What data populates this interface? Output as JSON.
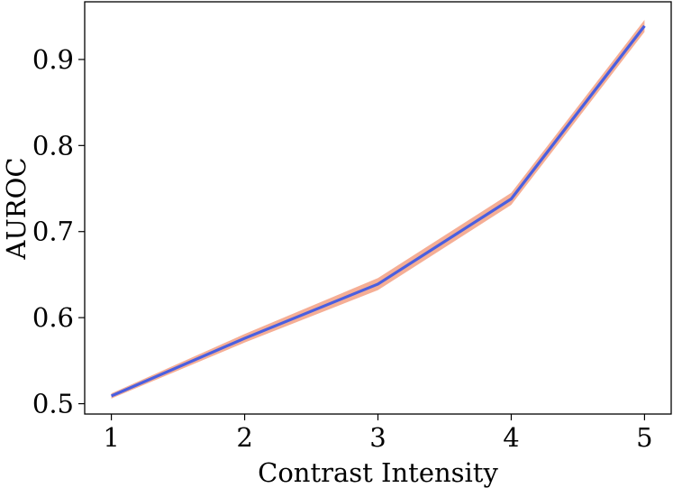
{
  "chart_data": {
    "type": "line",
    "title": "",
    "xlabel": "Contrast Intensity",
    "ylabel": "AUROC",
    "x": [
      1,
      2,
      3,
      4,
      5
    ],
    "xticks": [
      "1",
      "2",
      "3",
      "4",
      "5"
    ],
    "yticks": [
      "0.5",
      "0.6",
      "0.7",
      "0.8",
      "0.9"
    ],
    "xlim": [
      0.8,
      5.2
    ],
    "ylim": [
      0.488,
      0.967
    ],
    "grid": false,
    "series": [
      {
        "values": [
          0.509,
          0.576,
          0.639,
          0.738,
          0.939
        ],
        "lower": [
          0.506,
          0.571,
          0.632,
          0.731,
          0.932
        ],
        "upper": [
          0.512,
          0.581,
          0.646,
          0.745,
          0.946
        ],
        "line_color": "#4a5fe0",
        "band_color": "#f4a58a"
      }
    ]
  }
}
